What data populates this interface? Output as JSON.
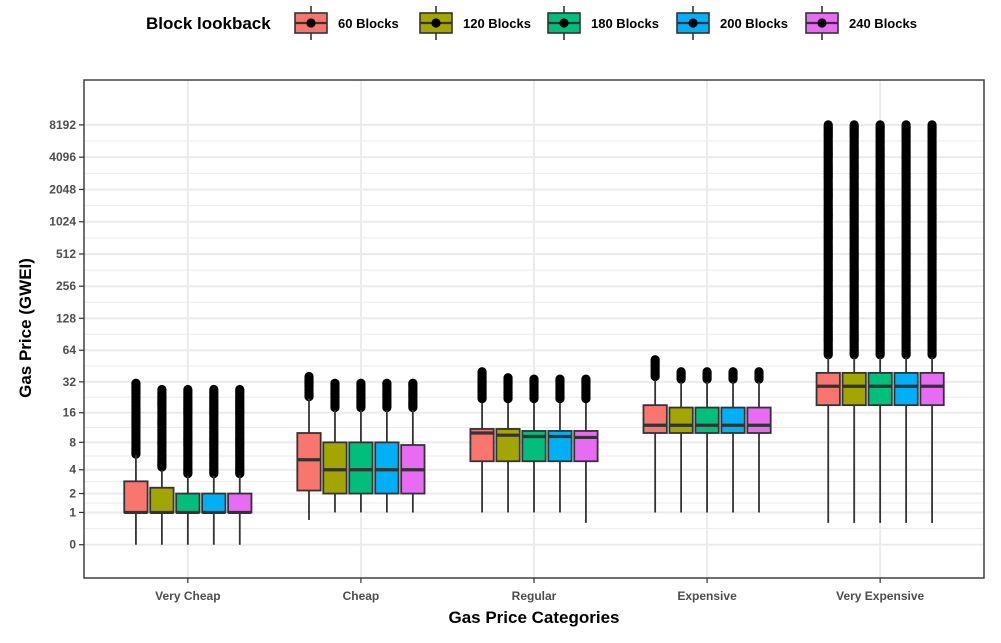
{
  "chart_data": {
    "type": "boxplot",
    "xlabel": "Gas Price Categories",
    "ylabel": "Gas Price (GWEI)",
    "y_scale": "log2(1 + y)",
    "y_ticks": [
      0,
      1,
      2,
      4,
      8,
      16,
      32,
      64,
      128,
      256,
      512,
      1024,
      2048,
      4096,
      8192
    ],
    "grid": true,
    "legend": {
      "title": "Block lookback",
      "position": "top"
    },
    "categories": [
      "Very Cheap",
      "Cheap",
      "Regular",
      "Expensive",
      "Very Expensive"
    ],
    "series": [
      {
        "name": "60 Blocks",
        "color": "#F8766D",
        "boxes": [
          {
            "whisker_low": 0,
            "q1": 1,
            "median": 1,
            "q3": 2.9,
            "whisker_high": 5.8,
            "outliers_from": 6,
            "outliers_to": 31
          },
          {
            "whisker_low": 0.7,
            "q1": 2.2,
            "median": 5.2,
            "q3": 10,
            "whisker_high": 22,
            "outliers_from": 23,
            "outliers_to": 36
          },
          {
            "whisker_low": 1,
            "q1": 5,
            "median": 10,
            "q3": 11,
            "whisker_high": 20,
            "outliers_from": 22,
            "outliers_to": 40
          },
          {
            "whisker_low": 1,
            "q1": 10,
            "median": 12,
            "q3": 19,
            "whisker_high": 33,
            "outliers_from": 36,
            "outliers_to": 52
          },
          {
            "whisker_low": 0.6,
            "q1": 19,
            "median": 29,
            "q3": 39,
            "whisker_high": 55,
            "outliers_from": 58,
            "outliers_to": 8192
          }
        ]
      },
      {
        "name": "120 Blocks",
        "color": "#A3A500",
        "boxes": [
          {
            "whisker_low": 0,
            "q1": 1,
            "median": 1,
            "q3": 2.4,
            "whisker_high": 4,
            "outliers_from": 4.3,
            "outliers_to": 27
          },
          {
            "whisker_low": 1,
            "q1": 2,
            "median": 4,
            "q3": 8,
            "whisker_high": 17,
            "outliers_from": 18,
            "outliers_to": 31
          },
          {
            "whisker_low": 1,
            "q1": 5,
            "median": 9.5,
            "q3": 11,
            "whisker_high": 20,
            "outliers_from": 22,
            "outliers_to": 35
          },
          {
            "whisker_low": 1,
            "q1": 10,
            "median": 12,
            "q3": 18,
            "whisker_high": 32,
            "outliers_from": 34,
            "outliers_to": 40
          },
          {
            "whisker_low": 0.6,
            "q1": 19,
            "median": 29,
            "q3": 39,
            "whisker_high": 55,
            "outliers_from": 58,
            "outliers_to": 8192
          }
        ]
      },
      {
        "name": "180 Blocks",
        "color": "#00BF7D",
        "boxes": [
          {
            "whisker_low": 0,
            "q1": 1,
            "median": 1,
            "q3": 2,
            "whisker_high": 3.4,
            "outliers_from": 3.6,
            "outliers_to": 27
          },
          {
            "whisker_low": 1,
            "q1": 2,
            "median": 4,
            "q3": 8,
            "whisker_high": 17,
            "outliers_from": 18,
            "outliers_to": 31
          },
          {
            "whisker_low": 1,
            "q1": 5,
            "median": 9.2,
            "q3": 10.5,
            "whisker_high": 20,
            "outliers_from": 22,
            "outliers_to": 34
          },
          {
            "whisker_low": 1,
            "q1": 10,
            "median": 12,
            "q3": 18,
            "whisker_high": 32,
            "outliers_from": 34,
            "outliers_to": 40
          },
          {
            "whisker_low": 0.6,
            "q1": 19,
            "median": 29,
            "q3": 39,
            "whisker_high": 55,
            "outliers_from": 58,
            "outliers_to": 8192
          }
        ]
      },
      {
        "name": "200 Blocks",
        "color": "#00B0F6",
        "boxes": [
          {
            "whisker_low": 0,
            "q1": 1,
            "median": 1,
            "q3": 2,
            "whisker_high": 3.4,
            "outliers_from": 3.6,
            "outliers_to": 27
          },
          {
            "whisker_low": 1,
            "q1": 2,
            "median": 4,
            "q3": 8,
            "whisker_high": 17,
            "outliers_from": 18,
            "outliers_to": 31
          },
          {
            "whisker_low": 1,
            "q1": 5,
            "median": 9.2,
            "q3": 10.5,
            "whisker_high": 20,
            "outliers_from": 22,
            "outliers_to": 34
          },
          {
            "whisker_low": 1,
            "q1": 10,
            "median": 12,
            "q3": 18,
            "whisker_high": 32,
            "outliers_from": 34,
            "outliers_to": 40
          },
          {
            "whisker_low": 0.6,
            "q1": 19,
            "median": 29,
            "q3": 39,
            "whisker_high": 55,
            "outliers_from": 58,
            "outliers_to": 8192
          }
        ]
      },
      {
        "name": "240 Blocks",
        "color": "#E76BF3",
        "boxes": [
          {
            "whisker_low": 0,
            "q1": 1,
            "median": 1,
            "q3": 2,
            "whisker_high": 3.4,
            "outliers_from": 3.6,
            "outliers_to": 27
          },
          {
            "whisker_low": 1,
            "q1": 2,
            "median": 4,
            "q3": 7.5,
            "whisker_high": 17,
            "outliers_from": 18,
            "outliers_to": 31
          },
          {
            "whisker_low": 0.6,
            "q1": 5,
            "median": 9,
            "q3": 10.5,
            "whisker_high": 20,
            "outliers_from": 22,
            "outliers_to": 34
          },
          {
            "whisker_low": 1,
            "q1": 10,
            "median": 12,
            "q3": 18,
            "whisker_high": 32,
            "outliers_from": 34,
            "outliers_to": 40
          },
          {
            "whisker_low": 0.6,
            "q1": 19,
            "median": 29,
            "q3": 39,
            "whisker_high": 55,
            "outliers_from": 58,
            "outliers_to": 8192
          }
        ]
      }
    ]
  }
}
